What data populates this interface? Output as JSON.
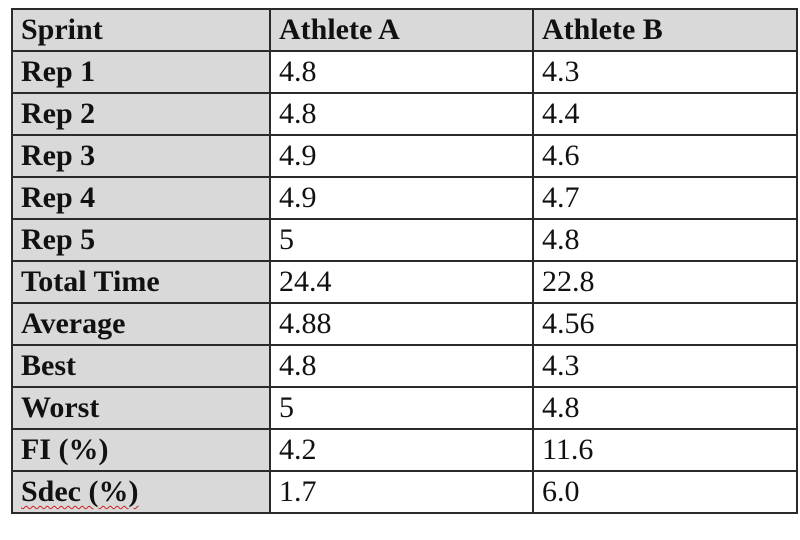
{
  "table": {
    "headers": [
      "Sprint",
      "Athlete A",
      "Athlete B"
    ],
    "rows": [
      {
        "label": "Rep 1",
        "a": "4.8",
        "b": "4.3"
      },
      {
        "label": "Rep 2",
        "a": "4.8",
        "b": "4.4"
      },
      {
        "label": "Rep 3",
        "a": "4.9",
        "b": "4.6"
      },
      {
        "label": "Rep 4",
        "a": "4.9",
        "b": "4.7"
      },
      {
        "label": "Rep 5",
        "a": "5",
        "b": "4.8"
      },
      {
        "label": "Total Time",
        "a": "24.4",
        "b": "22.8"
      },
      {
        "label": "Average",
        "a": "4.88",
        "b": "4.56"
      },
      {
        "label": "Best",
        "a": "4.8",
        "b": "4.3"
      },
      {
        "label": "Worst",
        "a": "5",
        "b": "4.8"
      },
      {
        "label": "FI (%)",
        "a": "4.2",
        "b": "11.6"
      },
      {
        "label": "Sdec (%)",
        "a": "1.7",
        "b": "6.0"
      }
    ]
  },
  "colors": {
    "header_fill": "#d9d9d9",
    "border": "#2a2a2a",
    "text": "#111111",
    "spellcheck_underline": "#d02020"
  }
}
